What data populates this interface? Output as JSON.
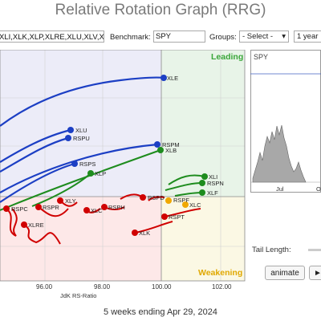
{
  "app": {
    "title": "Relative Rotation Graph (RRG)"
  },
  "controls": {
    "tickers_value": "XLI,XLK,XLP,XLRE,XLU,XLV,XL",
    "benchmark_label": "Benchmark:",
    "benchmark_value": "SPY",
    "groups_label": "Groups:",
    "groups_value": "- Select -",
    "period_value": "1 year"
  },
  "chart_data": {
    "type": "scatter",
    "xlabel": "JdK RS-Ratio",
    "x_ticks": [
      "96.00",
      "98.00",
      "100.00",
      "102.00"
    ],
    "quadrant_labels": {
      "leading": "Leading",
      "weakening": "Weakening"
    },
    "colors": {
      "lagging": "#fde8e8",
      "leading": "#e8f4e8",
      "improving": "#ececf8",
      "weakening": "#fbf8e4",
      "blue": "#1c3fc4",
      "green": "#1e8c1e",
      "red": "#d00000",
      "orange": "#f0a800"
    },
    "tails": [
      {
        "name": "XLE",
        "color": "blue"
      },
      {
        "name": "XLU",
        "color": "blue"
      },
      {
        "name": "RSPU",
        "color": "blue"
      },
      {
        "name": "RSPM",
        "color": "blue"
      },
      {
        "name": "XLB",
        "color": "green"
      },
      {
        "name": "RSPS",
        "color": "blue"
      },
      {
        "name": "XLP",
        "color": "green"
      },
      {
        "name": "XLI",
        "color": "green"
      },
      {
        "name": "RSPN",
        "color": "green"
      },
      {
        "name": "XLF",
        "color": "green"
      },
      {
        "name": "RSPC",
        "color": "red"
      },
      {
        "name": "RSPR",
        "color": "red"
      },
      {
        "name": "XLY",
        "color": "red"
      },
      {
        "name": "XLC",
        "color": "red"
      },
      {
        "name": "RSPH",
        "color": "red"
      },
      {
        "name": "RSPD",
        "color": "red"
      },
      {
        "name": "RSPF",
        "color": "red"
      },
      {
        "name": "RSPT",
        "color": "red"
      },
      {
        "name": "XLRE",
        "color": "red"
      },
      {
        "name": "XLK",
        "color": "red"
      },
      {
        "name": "XLC",
        "color": "orange"
      }
    ]
  },
  "spy": {
    "title": "SPY",
    "x_ticks": [
      "Jul",
      "O"
    ]
  },
  "tail_length_label": "Tail Length:",
  "buttons": {
    "animate": "animate",
    "play": "►"
  },
  "footer": "5 weeks ending Apr 29, 2024"
}
